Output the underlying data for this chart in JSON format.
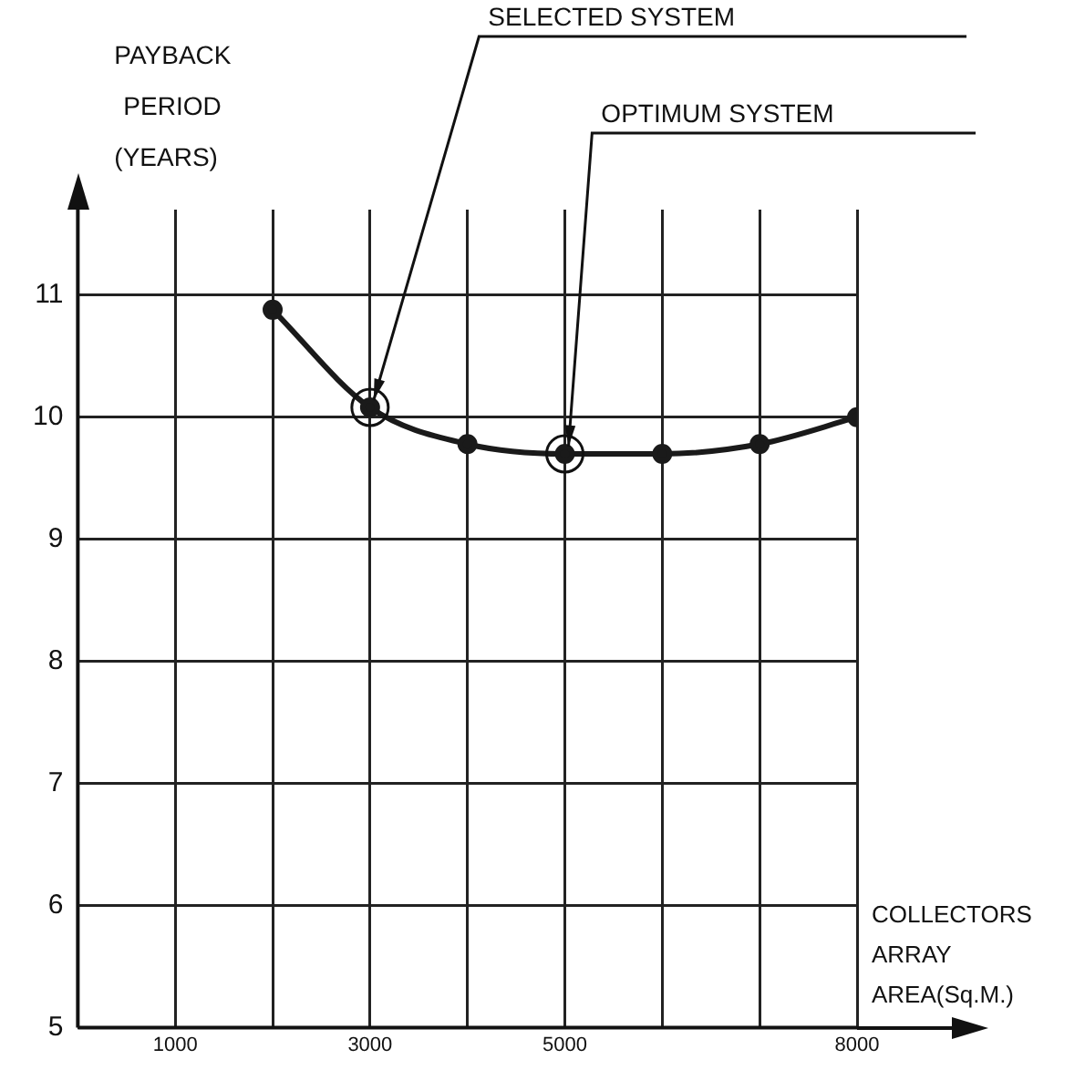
{
  "chart_data": {
    "type": "line",
    "ylabel": "PAYBACK PERIOD (YEARS)",
    "xlabel": "COLLECTORS ARRAY AREA(Sq.M.)",
    "x": [
      2000,
      3000,
      4000,
      5000,
      6000,
      7000,
      8000
    ],
    "series": [
      {
        "color": "#1a1a1a",
        "values": [
          10.88,
          10.08,
          9.78,
          9.7,
          9.7,
          9.78,
          10.0
        ]
      }
    ],
    "xlim": [
      0,
      8000
    ],
    "xticks": [
      {
        "value": 1000,
        "label": "1000"
      },
      {
        "value": 2000,
        "label": null
      },
      {
        "value": 3000,
        "label": "3000"
      },
      {
        "value": 4000,
        "label": null
      },
      {
        "value": 5000,
        "label": "5000"
      },
      {
        "value": 6000,
        "label": null
      },
      {
        "value": 7000,
        "label": null
      },
      {
        "value": 8000,
        "label": "8000"
      }
    ],
    "ylim": [
      5,
      11.7
    ],
    "yticks": [
      5,
      6,
      7,
      8,
      9,
      10,
      11
    ],
    "grid": true,
    "marker": "circle",
    "line_style": "solid",
    "legend": false,
    "annotations": [
      {
        "text": "SELECTED SYSTEM",
        "x": 3000,
        "y": 10.08
      },
      {
        "text": "OPTIMUM SYSTEM",
        "x": 5000,
        "y": 9.7
      }
    ]
  }
}
